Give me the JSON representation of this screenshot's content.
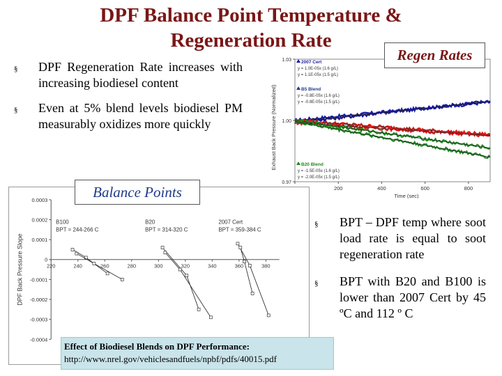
{
  "title": {
    "line1": "DPF Balance Point Temperature &",
    "line2": "Regeneration Rate"
  },
  "bullets_left": [
    {
      "text": "DPF Regeneration Rate increases with increasing biodiesel content"
    },
    {
      "text": "Even at 5% blend levels biodiesel PM measurably oxidizes more quickly"
    }
  ],
  "bullets_right": [
    {
      "text": "BPT – DPF temp where soot load rate is equal to soot regeneration rate"
    },
    {
      "text": "BPT with B20 and B100 is lower than 2007 Cert by 45 ºC and 112 º C"
    }
  ],
  "bullet_marker": "§",
  "labels": {
    "regen_rates": "Regen Rates",
    "balance_points": "Balance Points"
  },
  "reference": {
    "title": "Effect of Biodiesel Blends on DPF Performance:",
    "url": "http://www.nrel.gov/vehiclesandfuels/npbf/pdfs/40015.pdf"
  },
  "colors": {
    "title": "#7a1616",
    "balance_label": "#1f3a8a",
    "ref_bg": "#c9e4ea",
    "blue_series": "#1a1aa0",
    "red_series": "#e01818",
    "green_series": "#1f8a1f"
  },
  "chart_data": [
    {
      "type": "line",
      "title": "",
      "xlabel": "Time (sec)",
      "ylabel": "Exhaust Back Pressure (Normalized)",
      "xlim": [
        0,
        900
      ],
      "ylim": [
        0.97,
        1.03
      ],
      "x_ticks": [
        "0",
        "200",
        "400",
        "600",
        "800"
      ],
      "y_ticks": [
        "1.03",
        "1.00",
        "0.97"
      ],
      "legend_groups": [
        {
          "name": "2007 Cert",
          "color": "#1a1aa0",
          "entries": [
            "y = 1.0E-05x   (1.6 g/L)",
            "y = 1.1E-05x   (1.5 g/L)"
          ]
        },
        {
          "name": "B5 Blend",
          "color": "#1f3a8a",
          "entries": [
            "y = -0.8E-05x   (1.6 g/L)",
            "y = -0.8E-05x   (1.5 g/L)"
          ]
        },
        {
          "name": "B20 Blend",
          "color": "#1f8a1f",
          "entries": [
            "y = -1.5E-05x   (1.6 g/L)",
            "y = -2.0E-05x   (1.5 g/L)"
          ]
        }
      ],
      "series": [
        {
          "color": "#1a1aa0",
          "x": [
            0,
            900
          ],
          "y": [
            1.0,
            1.009
          ]
        },
        {
          "color": "#1a1aa0",
          "x": [
            0,
            900
          ],
          "y": [
            0.999,
            1.0095
          ]
        },
        {
          "color": "#e01818",
          "x": [
            0,
            900
          ],
          "y": [
            1.0,
            0.993
          ]
        },
        {
          "color": "#e01818",
          "x": [
            0,
            900
          ],
          "y": [
            0.999,
            0.9925
          ]
        },
        {
          "color": "#1f8a1f",
          "x": [
            0,
            900
          ],
          "y": [
            1.0,
            0.9865
          ]
        },
        {
          "color": "#1f8a1f",
          "x": [
            0,
            900
          ],
          "y": [
            0.9995,
            0.982
          ]
        }
      ]
    },
    {
      "type": "line",
      "title": "",
      "xlabel": "",
      "ylabel": "DPF Back Pressure Slope",
      "xlim": [
        220,
        390
      ],
      "ylim": [
        -0.0004,
        0.0003
      ],
      "x_ticks": [
        "220",
        "240",
        "260",
        "280",
        "300",
        "320",
        "340",
        "360",
        "380"
      ],
      "y_ticks": [
        "0.0003",
        "0.0002",
        "0.0001",
        "0",
        "-0.0001",
        "-0.0002",
        "-0.0003",
        "-0.0004"
      ],
      "annotations": [
        {
          "name": "B100",
          "text": "BPT = 244-266 C"
        },
        {
          "name": "B20",
          "text": "BPT = 314-320 C"
        },
        {
          "name": "2007 Cert",
          "text": "BPT = 359-384 C"
        }
      ],
      "series": [
        {
          "x": [
            236,
            246,
            262
          ],
          "y": [
            5e-05,
            1e-05,
            -7e-05
          ]
        },
        {
          "x": [
            239,
            252,
            273
          ],
          "y": [
            3e-05,
            -2e-05,
            -0.0001
          ]
        },
        {
          "x": [
            303,
            321,
            330
          ],
          "y": [
            6e-05,
            -8e-05,
            -0.00025
          ]
        },
        {
          "x": [
            305,
            316,
            339
          ],
          "y": [
            3.5e-05,
            -5e-05,
            -0.00029
          ]
        },
        {
          "x": [
            359,
            368,
            382
          ],
          "y": [
            8e-05,
            -3e-05,
            -0.00028
          ]
        },
        {
          "x": [
            361,
            364,
            370
          ],
          "y": [
            6e-05,
            -1e-05,
            -0.00017
          ]
        }
      ]
    }
  ]
}
